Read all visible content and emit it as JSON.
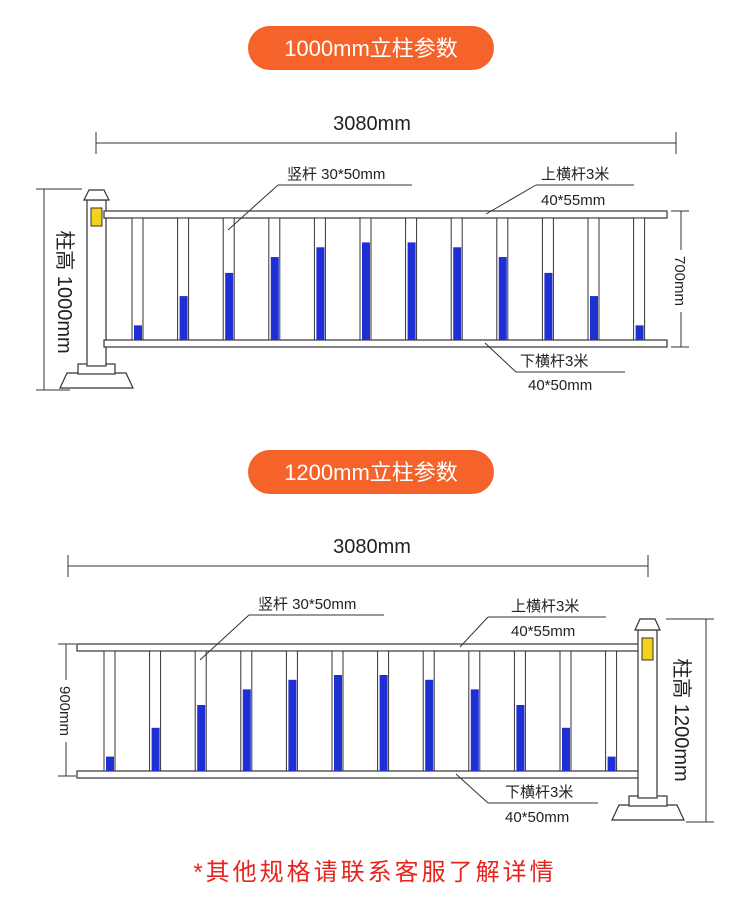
{
  "colors": {
    "accent_pill": "#f5622a",
    "bar_blue": "#1f2fd6",
    "reflector_yellow": "#f5d21a",
    "note_red": "#e8231c"
  },
  "diagrams": [
    {
      "title": "1000mm立柱参数",
      "total_length": "3080mm",
      "post_height": "柱高 1000mm",
      "fence_height": "700mm",
      "vertical_bar": "竖杆 30*50mm",
      "upper_rail_name": "上横杆3米",
      "upper_rail_size": "40*55mm",
      "lower_rail_name": "下横杆3米",
      "lower_rail_size": "40*50mm",
      "post_side": "left"
    },
    {
      "title": "1200mm立柱参数",
      "total_length": "3080mm",
      "post_height": "柱高 1200mm",
      "fence_height": "900mm",
      "vertical_bar": "竖杆 30*50mm",
      "upper_rail_name": "上横杆3米",
      "upper_rail_size": "40*55mm",
      "lower_rail_name": "下横杆3米",
      "lower_rail_size": "40*50mm",
      "post_side": "right"
    }
  ],
  "footer_note": "*其他规格请联系客服了解详情"
}
